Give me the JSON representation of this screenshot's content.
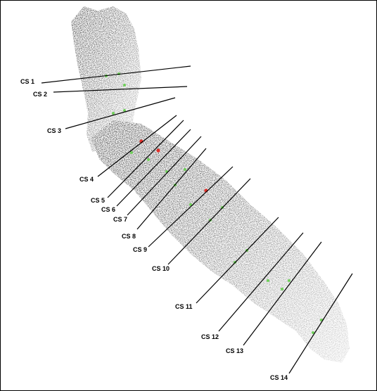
{
  "figure": {
    "colors": {
      "cloud_dark": "#1a1a1a",
      "cloud_mid": "#5a5a5a",
      "cloud_light": "#d0d0d0",
      "line": "#000000",
      "point_green": "#6fcf5a",
      "point_red": "#e0302a"
    },
    "cross_sections": [
      {
        "label": "CS 1"
      },
      {
        "label": "CS 2"
      },
      {
        "label": "CS 3"
      },
      {
        "label": "CS 4"
      },
      {
        "label": "CS 5"
      },
      {
        "label": "CS 6"
      },
      {
        "label": "CS 7"
      },
      {
        "label": "CS 8"
      },
      {
        "label": "CS 9"
      },
      {
        "label": "CS 10"
      },
      {
        "label": "CS 11"
      },
      {
        "label": "CS 12"
      },
      {
        "label": "CS 13"
      },
      {
        "label": "CS 14"
      }
    ]
  }
}
